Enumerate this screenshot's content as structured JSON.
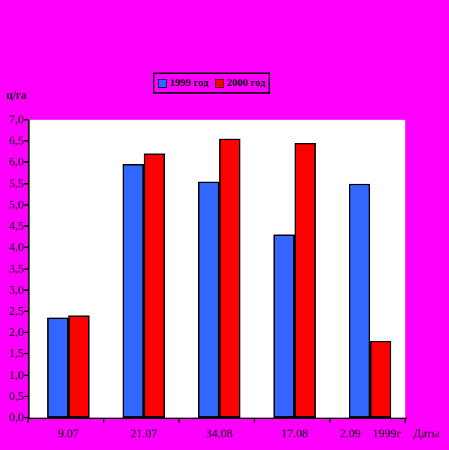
{
  "background_color": "#FF00FF",
  "chart_data": {
    "type": "bar",
    "title": "",
    "ylabel": "ц/га",
    "xlabel": "Даты",
    "x_axis_year_label": "1999г",
    "categories": [
      "9.07",
      "21.07",
      "34.08",
      "17.08",
      "2.09"
    ],
    "series": [
      {
        "name": "1999 год",
        "color": "#3366FF",
        "values": [
          2.35,
          5.95,
          5.55,
          4.3,
          5.5
        ]
      },
      {
        "name": "2000 год",
        "color": "#FF0000",
        "values": [
          2.4,
          6.2,
          6.55,
          6.45,
          1.8
        ]
      }
    ],
    "ylim": [
      0,
      7
    ],
    "ytick_step": 0.5,
    "ytick_labels": [
      "0,0",
      "0,5",
      "1,0",
      "1,5",
      "2,0",
      "2,5",
      "3,0",
      "3,5",
      "4,0",
      "4,5",
      "5,0",
      "5,5",
      "6,0",
      "6,5",
      "7,0"
    ],
    "decimal_separator": ",",
    "grid": false,
    "plot_background": "#FFFFFF",
    "legend_position": "top-center"
  }
}
